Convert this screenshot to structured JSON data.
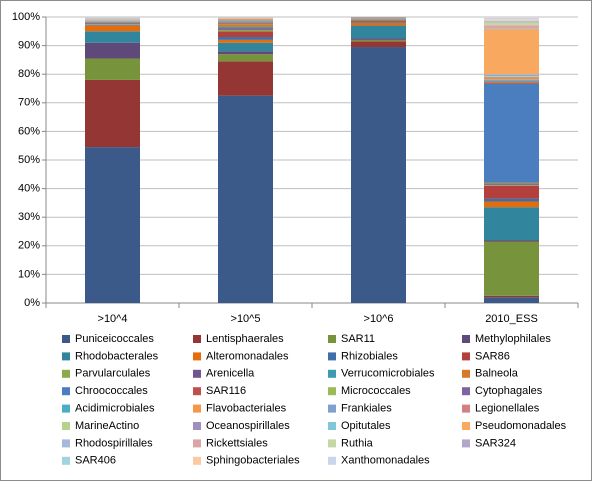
{
  "chart_data": {
    "type": "bar",
    "stacked": true,
    "categories": [
      ">10^4",
      ">10^5",
      ">10^6",
      "2010_ESS"
    ],
    "ylim": [
      0,
      100
    ],
    "yticks": [
      {
        "value": 0,
        "label": "0%"
      },
      {
        "value": 10,
        "label": "10%"
      },
      {
        "value": 20,
        "label": "20%"
      },
      {
        "value": 30,
        "label": "30%"
      },
      {
        "value": 40,
        "label": "40%"
      },
      {
        "value": 50,
        "label": "50%"
      },
      {
        "value": 60,
        "label": "60%"
      },
      {
        "value": 70,
        "label": "70%"
      },
      {
        "value": 80,
        "label": "80%"
      },
      {
        "value": 90,
        "label": "90%"
      },
      {
        "value": 100,
        "label": "100%"
      }
    ],
    "grid": true,
    "legend": "bottom",
    "series": [
      {
        "name": "Puniceicoccales",
        "color": "#3b5a8a",
        "values": [
          54.5,
          72.5,
          89.5,
          2
        ]
      },
      {
        "name": "Lentisphaerales",
        "color": "#943634",
        "values": [
          23.5,
          12,
          2,
          0.5
        ]
      },
      {
        "name": "SAR11",
        "color": "#77933c",
        "values": [
          7.5,
          2.5,
          0.5,
          19
        ]
      },
      {
        "name": "Methylophilales",
        "color": "#5f497a",
        "values": [
          5.5,
          1,
          0.5,
          0.5
        ]
      },
      {
        "name": "Rhodobacterales",
        "color": "#31859c",
        "values": [
          4,
          3,
          4.5,
          11.5
        ]
      },
      {
        "name": "Alteromonadales",
        "color": "#e46c0a",
        "values": [
          1.9,
          1,
          1,
          2
        ]
      },
      {
        "name": "Rhizobiales",
        "color": "#3f6ea8",
        "values": [
          0.2,
          1,
          0.3,
          1
        ]
      },
      {
        "name": "SAR86",
        "color": "#b3403d",
        "values": [
          0.2,
          2,
          0.3,
          4.5
        ]
      },
      {
        "name": "Parvularculales",
        "color": "#8aab4a",
        "values": [
          0.2,
          0.5,
          0.2,
          0.3
        ]
      },
      {
        "name": "Arenicella",
        "color": "#71558f",
        "values": [
          0.2,
          0.5,
          0.2,
          0.3
        ]
      },
      {
        "name": "Verrucomicrobiales",
        "color": "#3c9ab3",
        "values": [
          0.2,
          0.5,
          0.2,
          0.2
        ]
      },
      {
        "name": "Balneola",
        "color": "#d67a2a",
        "values": [
          0.2,
          1,
          0.2,
          0.3
        ]
      },
      {
        "name": "Chroococcales",
        "color": "#4a7ebf",
        "values": [
          0.1,
          0.3,
          0.1,
          34.5
        ]
      },
      {
        "name": "SAR116",
        "color": "#c0504d",
        "values": [
          0.1,
          0.3,
          0.1,
          0.5
        ]
      },
      {
        "name": "Micrococcales",
        "color": "#9bbb59",
        "values": [
          0.1,
          0.2,
          0.1,
          0.3
        ]
      },
      {
        "name": "Cytophagales",
        "color": "#8064a2",
        "values": [
          0.1,
          0.2,
          0.1,
          0.3
        ]
      },
      {
        "name": "Acidimicrobiales",
        "color": "#4bacc6",
        "values": [
          0.1,
          0.3,
          0.1,
          0.3
        ]
      },
      {
        "name": "Flavobacteriales",
        "color": "#f79646",
        "values": [
          0.1,
          0.5,
          0.1,
          0.5
        ]
      },
      {
        "name": "Frankiales",
        "color": "#7f9fcf",
        "values": [
          0.1,
          0.05,
          0,
          0.3
        ]
      },
      {
        "name": "Legionellales",
        "color": "#d08080",
        "values": [
          0.1,
          0.05,
          0,
          0.3
        ]
      },
      {
        "name": "MarineActino",
        "color": "#b7d08a",
        "values": [
          0.1,
          0.05,
          0,
          0.3
        ]
      },
      {
        "name": "Oceanospirillales",
        "color": "#a08ec0",
        "values": [
          0.1,
          0.05,
          0,
          0.3
        ]
      },
      {
        "name": "Opitutales",
        "color": "#80c8d8",
        "values": [
          0.1,
          0.05,
          0,
          0.3
        ]
      },
      {
        "name": "Pseudomonadales",
        "color": "#f9a860",
        "values": [
          0.1,
          0.05,
          0,
          15.8
        ]
      },
      {
        "name": "Rhodospirillales",
        "color": "#a5b9dc",
        "values": [
          0.1,
          0.05,
          0,
          0.3
        ]
      },
      {
        "name": "Rickettsiales",
        "color": "#dca5a5",
        "values": [
          0.1,
          0.05,
          0,
          1
        ]
      },
      {
        "name": "Ruthia",
        "color": "#c4d7a4",
        "values": [
          0.1,
          0.05,
          0,
          1
        ]
      },
      {
        "name": "SAR324",
        "color": "#b3a7c9",
        "values": [
          0.1,
          0.05,
          0,
          0.3
        ]
      },
      {
        "name": "SAR406",
        "color": "#a3d3e0",
        "values": [
          0.1,
          0.05,
          0,
          0.3
        ]
      },
      {
        "name": "Sphingobacteriales",
        "color": "#fbc9a3",
        "values": [
          0.1,
          0.05,
          0,
          0.5
        ]
      },
      {
        "name": "Xanthomonadales",
        "color": "#c9d5ea",
        "values": [
          0.1,
          0.05,
          0,
          0.5
        ]
      }
    ]
  }
}
